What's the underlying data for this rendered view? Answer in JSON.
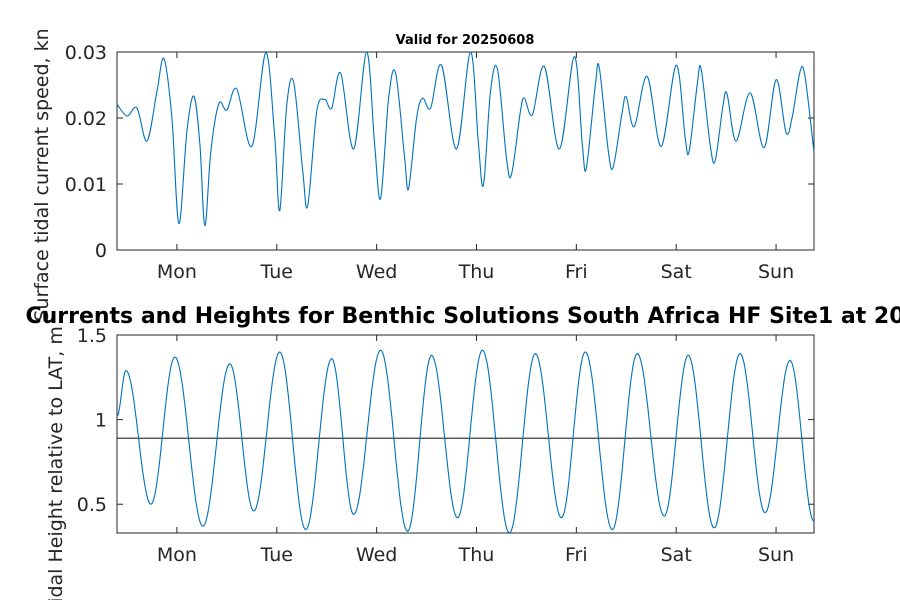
{
  "figure": {
    "top_title": "Valid for 20250608",
    "main_title": "Currents and Heights for Benthic Solutions South Africa HF Site1 at 20"
  },
  "chart_data": [
    {
      "type": "line",
      "ylabel": "Surface tidal current speed, kn",
      "x_ticks": [
        "Mon",
        "Tue",
        "Wed",
        "Thu",
        "Fri",
        "Sat",
        "Sun"
      ],
      "y_ticks": [
        "0",
        "0.01",
        "0.02",
        "0.03"
      ],
      "xlim_days": [
        -0.6,
        6.38
      ],
      "ylim": [
        0,
        0.03
      ],
      "series": [
        {
          "color": "#0072bd",
          "points": [
            [
              -0.6,
              0.0221
            ],
            [
              -0.5,
              0.0203
            ],
            [
              -0.4,
              0.0215
            ],
            [
              -0.3,
              0.0165
            ],
            [
              -0.2,
              0.024
            ],
            [
              -0.13,
              0.029
            ],
            [
              -0.05,
              0.02
            ],
            [
              0.02,
              0.004
            ],
            [
              0.1,
              0.018
            ],
            [
              0.17,
              0.0233
            ],
            [
              0.23,
              0.016
            ],
            [
              0.28,
              0.0037
            ],
            [
              0.34,
              0.015
            ],
            [
              0.42,
              0.0222
            ],
            [
              0.5,
              0.0212
            ],
            [
              0.6,
              0.0244
            ],
            [
              0.75,
              0.0157
            ],
            [
              0.89,
              0.0299
            ],
            [
              0.98,
              0.017
            ],
            [
              1.03,
              0.006
            ],
            [
              1.1,
              0.022
            ],
            [
              1.17,
              0.0254
            ],
            [
              1.26,
              0.012
            ],
            [
              1.31,
              0.0067
            ],
            [
              1.4,
              0.021
            ],
            [
              1.48,
              0.0228
            ],
            [
              1.55,
              0.0215
            ],
            [
              1.64,
              0.0268
            ],
            [
              1.77,
              0.0153
            ],
            [
              1.9,
              0.03
            ],
            [
              1.98,
              0.016
            ],
            [
              2.04,
              0.0078
            ],
            [
              2.12,
              0.023
            ],
            [
              2.19,
              0.0268
            ],
            [
              2.28,
              0.014
            ],
            [
              2.32,
              0.0093
            ],
            [
              2.4,
              0.02
            ],
            [
              2.46,
              0.023
            ],
            [
              2.54,
              0.0215
            ],
            [
              2.65,
              0.028
            ],
            [
              2.8,
              0.0153
            ],
            [
              2.94,
              0.03
            ],
            [
              3.02,
              0.016
            ],
            [
              3.07,
              0.0099
            ],
            [
              3.14,
              0.024
            ],
            [
              3.21,
              0.0274
            ],
            [
              3.3,
              0.014
            ],
            [
              3.35,
              0.0114
            ],
            [
              3.44,
              0.021
            ],
            [
              3.48,
              0.023
            ],
            [
              3.56,
              0.0205
            ],
            [
              3.68,
              0.0278
            ],
            [
              3.83,
              0.0153
            ],
            [
              3.98,
              0.0293
            ],
            [
              4.06,
              0.016
            ],
            [
              4.1,
              0.0124
            ],
            [
              4.19,
              0.025
            ],
            [
              4.23,
              0.0276
            ],
            [
              4.32,
              0.015
            ],
            [
              4.37,
              0.0126
            ],
            [
              4.46,
              0.021
            ],
            [
              4.5,
              0.0232
            ],
            [
              4.58,
              0.0187
            ],
            [
              4.71,
              0.0263
            ],
            [
              4.85,
              0.0157
            ],
            [
              5.0,
              0.028
            ],
            [
              5.09,
              0.017
            ],
            [
              5.13,
              0.015
            ],
            [
              5.21,
              0.025
            ],
            [
              5.25,
              0.0274
            ],
            [
              5.34,
              0.016
            ],
            [
              5.39,
              0.0135
            ],
            [
              5.47,
              0.022
            ],
            [
              5.51,
              0.0236
            ],
            [
              5.6,
              0.0165
            ],
            [
              5.74,
              0.0238
            ],
            [
              5.88,
              0.0155
            ],
            [
              6.0,
              0.0258
            ],
            [
              6.1,
              0.0178
            ],
            [
              6.16,
              0.02
            ],
            [
              6.24,
              0.027
            ],
            [
              6.29,
              0.0263
            ],
            [
              6.38,
              0.0148
            ]
          ]
        }
      ]
    },
    {
      "type": "line",
      "ylabel": "Tidal Height relative to LAT, m",
      "x_ticks": [
        "Mon",
        "Tue",
        "Wed",
        "Thu",
        "Fri",
        "Sat",
        "Sun"
      ],
      "y_ticks": [
        "0.5",
        "1",
        "1.5"
      ],
      "xlim_days": [
        -0.6,
        6.38
      ],
      "ylim": [
        0.33,
        1.5
      ],
      "reference_line": 0.89,
      "series": [
        {
          "color": "#0072bd",
          "extrema": [
            [
              -0.6,
              1.02
            ],
            [
              -0.51,
              1.29
            ],
            [
              -0.26,
              0.5
            ],
            [
              -0.02,
              1.37
            ],
            [
              0.26,
              0.37
            ],
            [
              0.53,
              1.33
            ],
            [
              0.77,
              0.46
            ],
            [
              1.03,
              1.4
            ],
            [
              1.29,
              0.35
            ],
            [
              1.55,
              1.36
            ],
            [
              1.77,
              0.44
            ],
            [
              2.04,
              1.41
            ],
            [
              2.31,
              0.34
            ],
            [
              2.55,
              1.38
            ],
            [
              2.81,
              0.42
            ],
            [
              3.06,
              1.41
            ],
            [
              3.33,
              0.33
            ],
            [
              3.59,
              1.39
            ],
            [
              3.85,
              0.42
            ],
            [
              4.09,
              1.4
            ],
            [
              4.36,
              0.35
            ],
            [
              4.61,
              1.39
            ],
            [
              4.88,
              0.43
            ],
            [
              5.12,
              1.38
            ],
            [
              5.38,
              0.36
            ],
            [
              5.64,
              1.39
            ],
            [
              5.89,
              0.45
            ],
            [
              6.14,
              1.35
            ],
            [
              6.38,
              0.4
            ]
          ]
        }
      ]
    }
  ]
}
